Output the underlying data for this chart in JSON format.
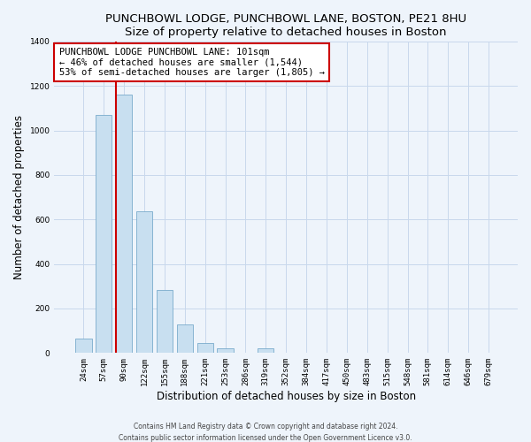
{
  "title": "PUNCHBOWL LODGE, PUNCHBOWL LANE, BOSTON, PE21 8HU",
  "subtitle": "Size of property relative to detached houses in Boston",
  "xlabel": "Distribution of detached houses by size in Boston",
  "ylabel": "Number of detached properties",
  "bar_labels": [
    "24sqm",
    "57sqm",
    "90sqm",
    "122sqm",
    "155sqm",
    "188sqm",
    "221sqm",
    "253sqm",
    "286sqm",
    "319sqm",
    "352sqm",
    "384sqm",
    "417sqm",
    "450sqm",
    "483sqm",
    "515sqm",
    "548sqm",
    "581sqm",
    "614sqm",
    "646sqm",
    "679sqm"
  ],
  "bar_values": [
    65,
    1070,
    1160,
    635,
    285,
    130,
    47,
    20,
    0,
    20,
    0,
    0,
    0,
    0,
    0,
    0,
    0,
    0,
    0,
    0,
    0
  ],
  "bar_face_color": "#c8dff0",
  "bar_edge_color": "#7aabcc",
  "vline_color": "#cc0000",
  "annotation_line1": "PUNCHBOWL LODGE PUNCHBOWL LANE: 101sqm",
  "annotation_line2": "← 46% of detached houses are smaller (1,544)",
  "annotation_line3": "53% of semi-detached houses are larger (1,805) →",
  "annotation_box_color": "#ffffff",
  "annotation_box_edge": "#cc0000",
  "ylim": [
    0,
    1400
  ],
  "yticks": [
    0,
    200,
    400,
    600,
    800,
    1000,
    1200,
    1400
  ],
  "footer1": "Contains HM Land Registry data © Crown copyright and database right 2024.",
  "footer2": "Contains public sector information licensed under the Open Government Licence v3.0.",
  "bg_color": "#eef4fb",
  "grid_color": "#c8d8ec",
  "title_fontsize": 9.5,
  "subtitle_fontsize": 8.5,
  "tick_fontsize": 6.5,
  "axis_label_fontsize": 8.5,
  "footer_fontsize": 5.5
}
